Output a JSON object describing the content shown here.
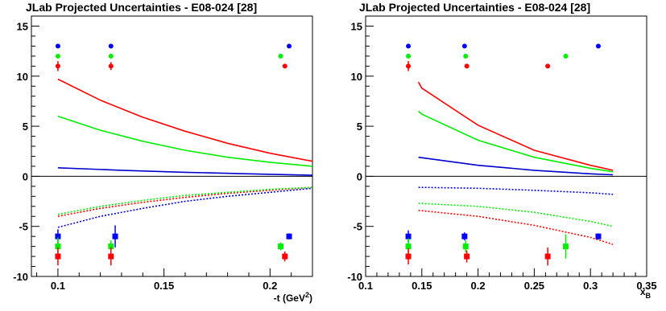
{
  "chart_data": [
    {
      "type": "line",
      "title": "JLab Projected Uncertainties - E08-024 [28]",
      "xlabel": "-t (GeV",
      "xlabel_sup": "2",
      "xlabel_end": ")",
      "ylabel": "",
      "xlim": [
        0.0875,
        0.22
      ],
      "ylim": [
        -10,
        16
      ],
      "grid": false,
      "xticks": [
        0.1,
        0.15,
        0.2
      ],
      "xtick_labels": [
        "0.1",
        "0.15",
        "0.2"
      ],
      "yticks": [
        -10,
        -5,
        0,
        5,
        10,
        15
      ],
      "ytick_labels": [
        "-10",
        "-5",
        "0",
        "5",
        "10",
        "15"
      ],
      "zero_line": 0,
      "series": [
        {
          "color": "#ff0000",
          "style": "solid",
          "x": [
            0.1,
            0.12,
            0.14,
            0.16,
            0.18,
            0.2,
            0.22
          ],
          "y": [
            9.7,
            7.6,
            5.9,
            4.5,
            3.3,
            2.3,
            1.5
          ]
        },
        {
          "color": "#00ee00",
          "style": "solid",
          "x": [
            0.1,
            0.12,
            0.14,
            0.16,
            0.18,
            0.2,
            0.22
          ],
          "y": [
            6.0,
            4.6,
            3.5,
            2.6,
            1.9,
            1.4,
            1.0
          ]
        },
        {
          "color": "#0000cc",
          "style": "solid",
          "x": [
            0.1,
            0.13,
            0.16,
            0.19,
            0.22
          ],
          "y": [
            0.85,
            0.6,
            0.4,
            0.25,
            0.1
          ]
        },
        {
          "color": "#ff0000",
          "style": "dotted",
          "x": [
            0.1,
            0.12,
            0.14,
            0.16,
            0.18,
            0.2,
            0.22
          ],
          "y": [
            -4.0,
            -3.2,
            -2.6,
            -2.1,
            -1.7,
            -1.4,
            -1.1
          ]
        },
        {
          "color": "#00ee00",
          "style": "dotted",
          "x": [
            0.1,
            0.12,
            0.14,
            0.16,
            0.18,
            0.2,
            0.22
          ],
          "y": [
            -3.8,
            -3.0,
            -2.4,
            -1.9,
            -1.6,
            -1.3,
            -1.1
          ]
        },
        {
          "color": "#0000cc",
          "style": "dotted",
          "x": [
            0.1,
            0.12,
            0.14,
            0.16,
            0.18,
            0.2,
            0.22
          ],
          "y": [
            -5.1,
            -4.0,
            -3.2,
            -2.5,
            -2.0,
            -1.6,
            -1.2
          ]
        }
      ],
      "markers": [
        {
          "color": "#0000ff",
          "shape": "circle",
          "x": [
            0.1,
            0.125,
            0.209
          ],
          "y": [
            13,
            13,
            13
          ]
        },
        {
          "color": "#00ee00",
          "shape": "circle",
          "x": [
            0.1,
            0.125,
            0.205
          ],
          "y": [
            12,
            12,
            12
          ]
        },
        {
          "color": "#ff0000",
          "shape": "circle",
          "x": [
            0.1,
            0.125,
            0.207
          ],
          "y": [
            11,
            11,
            11
          ],
          "yerr": [
            0.5,
            0.4,
            0.0
          ]
        },
        {
          "color": "#0000ff",
          "shape": "square",
          "x": [
            0.1,
            0.127,
            0.209
          ],
          "y": [
            -6,
            -6,
            -6
          ],
          "yerr": [
            0.7,
            1.1,
            0.3
          ]
        },
        {
          "color": "#00ee00",
          "shape": "square",
          "x": [
            0.1,
            0.125,
            0.205
          ],
          "y": [
            -7,
            -7,
            -7
          ],
          "yerr": [
            0.9,
            0.6,
            0.4
          ]
        },
        {
          "color": "#ff0000",
          "shape": "square",
          "x": [
            0.1,
            0.125,
            0.207
          ],
          "y": [
            -8,
            -8,
            -8
          ],
          "yerr": [
            0.9,
            0.9,
            0.5
          ]
        }
      ]
    },
    {
      "type": "line",
      "title": "JLab Projected Uncertainties - E08-024 [28]",
      "xlabel": "x",
      "xlabel_sub": "B",
      "xlabel_sup": "",
      "xlabel_end": "",
      "ylabel": "",
      "xlim": [
        0.1,
        0.35
      ],
      "ylim": [
        -10,
        16
      ],
      "grid": false,
      "xticks": [
        0.1,
        0.15,
        0.2,
        0.25,
        0.3,
        0.35
      ],
      "xtick_labels": [
        "0.1",
        "0.15",
        "0.2",
        "0.25",
        "0.3",
        "0.35"
      ],
      "yticks": [
        -10,
        -5,
        0,
        5,
        10,
        15
      ],
      "ytick_labels": [
        "-10",
        "-5",
        "0",
        "5",
        "10",
        "15"
      ],
      "zero_line": 0,
      "series": [
        {
          "color": "#ff0000",
          "style": "solid",
          "x": [
            0.147,
            0.15,
            0.2,
            0.25,
            0.3,
            0.32
          ],
          "y": [
            9.4,
            8.8,
            5.1,
            2.6,
            1.1,
            0.6
          ]
        },
        {
          "color": "#00ee00",
          "style": "solid",
          "x": [
            0.147,
            0.15,
            0.2,
            0.25,
            0.3,
            0.32
          ],
          "y": [
            6.5,
            6.2,
            3.6,
            1.9,
            0.8,
            0.45
          ]
        },
        {
          "color": "#0000cc",
          "style": "solid",
          "x": [
            0.147,
            0.2,
            0.25,
            0.3,
            0.32
          ],
          "y": [
            1.9,
            1.1,
            0.6,
            0.25,
            0.15
          ]
        },
        {
          "color": "#0000cc",
          "style": "dotted",
          "x": [
            0.147,
            0.2,
            0.25,
            0.3,
            0.32
          ],
          "y": [
            -1.1,
            -1.2,
            -1.4,
            -1.65,
            -1.8
          ]
        },
        {
          "color": "#00ee00",
          "style": "dotted",
          "x": [
            0.147,
            0.2,
            0.25,
            0.3,
            0.32
          ],
          "y": [
            -2.7,
            -3.0,
            -3.6,
            -4.5,
            -5.0
          ]
        },
        {
          "color": "#ff0000",
          "style": "dotted",
          "x": [
            0.147,
            0.2,
            0.25,
            0.3,
            0.32
          ],
          "y": [
            -3.4,
            -4.0,
            -4.9,
            -6.1,
            -6.8
          ]
        }
      ],
      "markers": [
        {
          "color": "#0000ff",
          "shape": "circle",
          "x": [
            0.138,
            0.188,
            0.307
          ],
          "y": [
            13,
            13,
            13
          ]
        },
        {
          "color": "#00ee00",
          "shape": "circle",
          "x": [
            0.138,
            0.189,
            0.278
          ],
          "y": [
            12,
            12,
            12
          ]
        },
        {
          "color": "#ff0000",
          "shape": "circle",
          "x": [
            0.138,
            0.19,
            0.262
          ],
          "y": [
            11,
            11,
            11
          ],
          "yerr": [
            0.5,
            0.0,
            0.0
          ]
        },
        {
          "color": "#0000ff",
          "shape": "square",
          "x": [
            0.138,
            0.188,
            0.307
          ],
          "y": [
            -6,
            -6,
            -6
          ],
          "yerr": [
            0.6,
            0.4,
            0.3
          ]
        },
        {
          "color": "#00ee00",
          "shape": "square",
          "x": [
            0.138,
            0.189,
            0.278
          ],
          "y": [
            -7,
            -7,
            -7
          ],
          "yerr": [
            0.8,
            0.6,
            1.2
          ]
        },
        {
          "color": "#ff0000",
          "shape": "square",
          "x": [
            0.138,
            0.19,
            0.262
          ],
          "y": [
            -8,
            -8,
            -8
          ],
          "yerr": [
            0.8,
            0.6,
            0.9
          ]
        }
      ]
    }
  ]
}
